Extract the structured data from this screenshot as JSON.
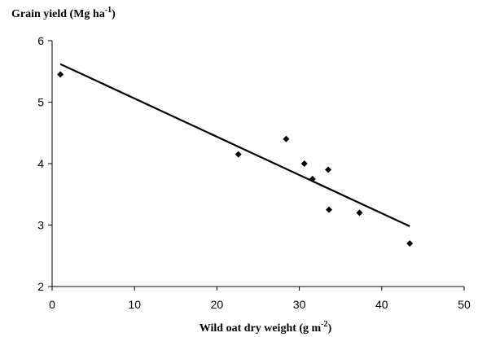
{
  "chart_data": {
    "type": "scatter",
    "title": "",
    "ylabel": "Grain yield (Mg ha",
    "ylabel_sup": "-1",
    "ylabel_tail": ")",
    "xlabel": "Wild oat dry weight (g m",
    "xlabel_sup": "-2",
    "xlabel_tail": ")",
    "xlim": [
      0,
      50
    ],
    "ylim": [
      2,
      6
    ],
    "xticks": [
      0,
      10,
      20,
      30,
      40,
      50
    ],
    "yticks": [
      2,
      3,
      4,
      5,
      6
    ],
    "grid": false,
    "series": [
      {
        "points": [
          {
            "x": 1.0,
            "y": 5.45
          },
          {
            "x": 22.6,
            "y": 4.15
          },
          {
            "x": 28.4,
            "y": 4.4
          },
          {
            "x": 30.6,
            "y": 4.0
          },
          {
            "x": 31.6,
            "y": 3.75
          },
          {
            "x": 33.5,
            "y": 3.9
          },
          {
            "x": 33.6,
            "y": 3.25
          },
          {
            "x": 37.3,
            "y": 3.2
          },
          {
            "x": 43.4,
            "y": 2.7
          }
        ]
      }
    ],
    "trendline": {
      "x": [
        1.0,
        43.4
      ],
      "y": [
        5.62,
        2.98
      ]
    }
  }
}
